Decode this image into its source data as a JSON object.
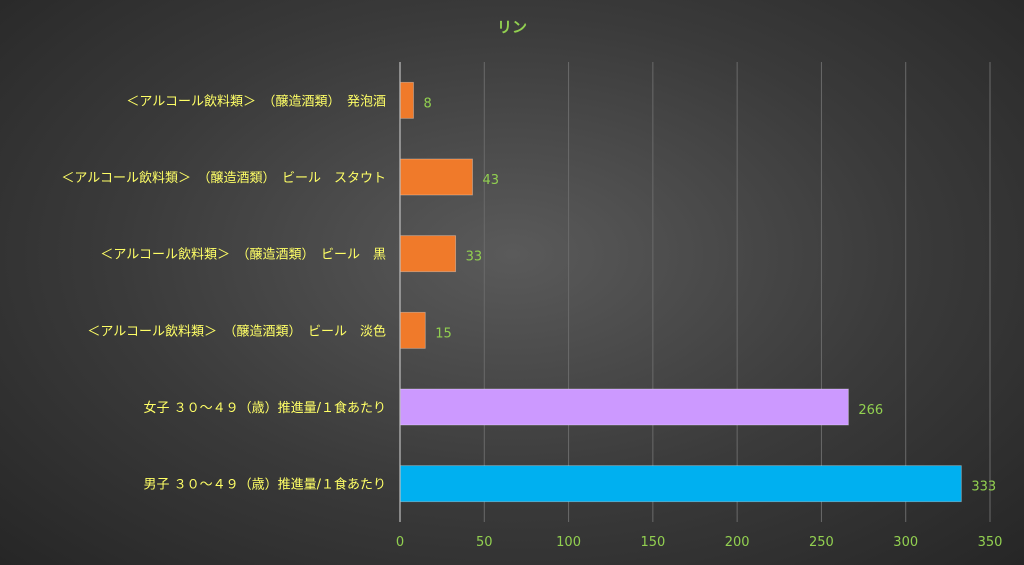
{
  "chart_data": {
    "type": "bar",
    "orientation": "horizontal",
    "title": "リン",
    "categories": [
      "＜アルコール飲料類＞　（醸造酒類）　発泡酒",
      "＜アルコール飲料類＞　（醸造酒類）　ビール　スタウト",
      "＜アルコール飲料類＞　（醸造酒類）　ビール　黒",
      "＜アルコール飲料類＞　（醸造酒類）　ビール　淡色",
      "女子 ３０～４９（歳）推進量/１食あたり",
      "男子 ３０～４９（歳）推進量/１食あたり"
    ],
    "values": [
      8,
      43,
      33,
      15,
      266,
      333
    ],
    "bar_colors": [
      "#f07a2a",
      "#f07a2a",
      "#f07a2a",
      "#f07a2a",
      "#cc99ff",
      "#00b0f0"
    ],
    "xlim": [
      0,
      350
    ],
    "xticks": [
      0,
      50,
      100,
      150,
      200,
      250,
      300,
      350
    ],
    "grid": true,
    "data_labels": true
  },
  "colors": {
    "title": "#92d050",
    "category_label": "#ffff66",
    "tick_label": "#92d050",
    "data_label": "#92d050",
    "gridline": "#6a6a6a",
    "axis": "#bfbfbf"
  }
}
